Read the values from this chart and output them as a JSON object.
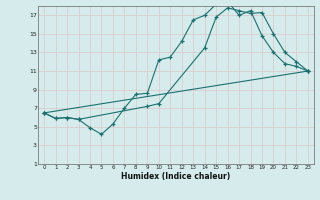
{
  "xlabel": "Humidex (Indice chaleur)",
  "bg_color": "#d6ecec",
  "grid_color": "#c8dede",
  "line_color": "#1a7070",
  "xlim": [
    -0.5,
    23.5
  ],
  "ylim": [
    1,
    18
  ],
  "xticks": [
    0,
    1,
    2,
    3,
    4,
    5,
    6,
    7,
    8,
    9,
    10,
    11,
    12,
    13,
    14,
    15,
    16,
    17,
    18,
    19,
    20,
    21,
    22,
    23
  ],
  "yticks": [
    1,
    3,
    5,
    7,
    9,
    11,
    13,
    15,
    17
  ],
  "series1_x": [
    0,
    1,
    2,
    3,
    4,
    5,
    6,
    7,
    8,
    9,
    10,
    11,
    12,
    13,
    14,
    15,
    16,
    17,
    18,
    19,
    20,
    21,
    22,
    23
  ],
  "series1_y": [
    6.5,
    5.9,
    6.0,
    5.8,
    4.9,
    4.2,
    5.3,
    7.0,
    8.5,
    8.6,
    12.2,
    12.5,
    14.2,
    16.5,
    17.0,
    18.2,
    18.5,
    17.0,
    17.5,
    14.8,
    13.0,
    11.8,
    11.5,
    11.0
  ],
  "series2_x": [
    0,
    1,
    2,
    3,
    9,
    10,
    14,
    15,
    16,
    17,
    18,
    19,
    20,
    21,
    22,
    23
  ],
  "series2_y": [
    6.5,
    5.9,
    6.0,
    5.8,
    7.2,
    7.5,
    13.5,
    16.8,
    17.8,
    17.5,
    17.2,
    17.3,
    15.0,
    13.0,
    12.0,
    11.0
  ],
  "series3_x": [
    0,
    23
  ],
  "series3_y": [
    6.5,
    11.0
  ]
}
